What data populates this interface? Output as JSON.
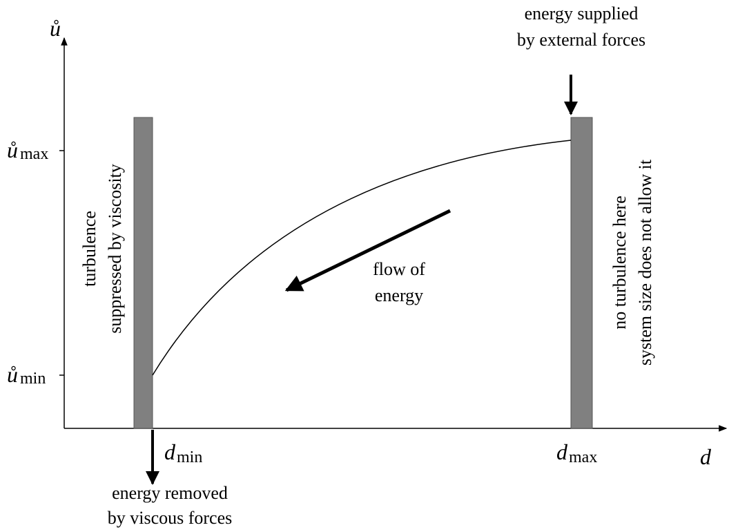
{
  "y_axis": {
    "label": "ů",
    "ticks": [
      {
        "symbol": "ů",
        "sub": "max"
      },
      {
        "symbol": "ů",
        "sub": "min"
      }
    ]
  },
  "x_axis": {
    "label": "d",
    "ticks": [
      {
        "symbol": "d",
        "sub": "min"
      },
      {
        "symbol": "d",
        "sub": "max"
      }
    ]
  },
  "annotations": {
    "energy_supplied": [
      "energy supplied",
      "by external forces"
    ],
    "energy_removed": [
      "energy removed",
      "by viscous forces"
    ],
    "turbulence_suppressed": [
      "turbulence",
      "suppressed by viscosity"
    ],
    "no_turbulence": [
      "no turbulence here",
      "system size does not allow it"
    ],
    "flow": [
      "flow of",
      "energy"
    ]
  }
}
